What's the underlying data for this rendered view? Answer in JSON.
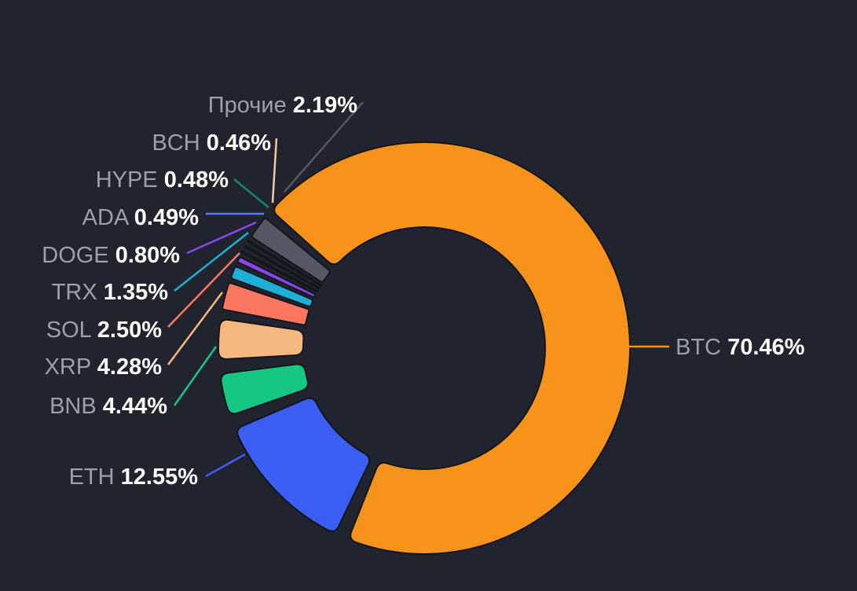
{
  "chart_data": {
    "type": "pie",
    "variant": "donut",
    "title": "",
    "slices": [
      {
        "name": "BTC",
        "label": "70.46%",
        "value": 70.46,
        "color": "#f7931a"
      },
      {
        "name": "ETH",
        "label": "12.55%",
        "value": 12.55,
        "color": "#3b5ef5"
      },
      {
        "name": "BNB",
        "label": "4.44%",
        "value": 4.44,
        "color": "#16c784"
      },
      {
        "name": "XRP",
        "label": "4.28%",
        "value": 4.28,
        "color": "#f5b97f"
      },
      {
        "name": "SOL",
        "label": "2.50%",
        "value": 2.5,
        "color": "#fb7760"
      },
      {
        "name": "TRX",
        "label": "1.35%",
        "value": 1.35,
        "color": "#1cb0d6"
      },
      {
        "name": "DOGE",
        "label": "0.80%",
        "value": 0.8,
        "color": "#8b45f0"
      },
      {
        "name": "ADA",
        "label": "0.49%",
        "value": 0.49,
        "color": "#5a7cf0"
      },
      {
        "name": "HYPE",
        "label": "0.48%",
        "value": 0.48,
        "color": "#118a63"
      },
      {
        "name": "BCH",
        "label": "0.46%",
        "value": 0.46,
        "color": "#f5c8a0"
      },
      {
        "name": "Прочие",
        "label": "2.19%",
        "value": 2.19,
        "color": "#545866"
      }
    ]
  },
  "colors": {
    "background": "#21232e",
    "slice_stroke": "#14161c",
    "label_name": "#9aa0ae",
    "label_value": "#ffffff"
  }
}
